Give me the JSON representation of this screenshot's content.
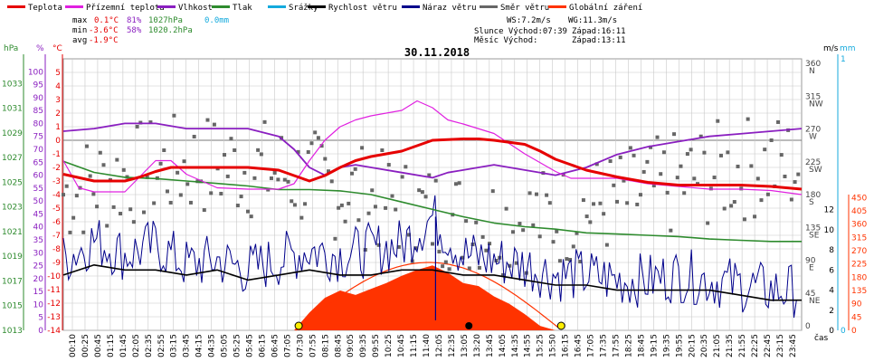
{
  "colors": {
    "teplota": "#e60000",
    "rosny_bod": "#e020e0",
    "vlhkost": "#8a1fc0",
    "tlak": "#2e8b2e",
    "srazky": "#14aadd",
    "rychlost": "#000000",
    "naraz": "#00008b",
    "smer": "#666666",
    "zareni": "#ff3300",
    "theoretical_curve": "#ff3300",
    "grid": "#c8c8c8"
  },
  "legend": [
    {
      "key": "teplota",
      "label": "Teplota"
    },
    {
      "key": "rosny_bod",
      "label": "Přízemní teplota"
    },
    {
      "key": "vlhkost",
      "label": "Vlhkost"
    },
    {
      "key": "tlak",
      "label": "Tlak"
    },
    {
      "key": "srazky",
      "label": "Srážky"
    },
    {
      "key": "rychlost",
      "label": "Rychlost větru"
    },
    {
      "key": "naraz",
      "label": "Náraz větru"
    },
    {
      "key": "smer",
      "label": "Směr větru"
    },
    {
      "key": "zareni",
      "label": "Globální záření"
    }
  ],
  "stats": {
    "max_label": "max",
    "max_temp": "0.1°C",
    "max_hum": "81%",
    "max_press": "1027hPa",
    "srazky": "0.0mm",
    "min_label": "min",
    "min_temp": "-3.6°C",
    "min_hum": "58%",
    "min_press": "1020.2hPa",
    "avg_label": "avg",
    "avg_temp": "-1.9°C",
    "ws": "WS:7.2m/s",
    "wg": "WG:11.3m/s",
    "slunce": "Slunce Východ:07:39",
    "slunce_zapad": "Západ:16:11",
    "mesic": "Měsíc  Východ:",
    "mesic_zapad": "Západ:13:11"
  },
  "chart_data": {
    "type": "line",
    "title": "30.11.2018",
    "x_unit_label": "čas",
    "x_ticks": [
      "00:10",
      "00:25",
      "00:45",
      "01:15",
      "01:45",
      "02:05",
      "02:35",
      "02:55",
      "03:15",
      "03:45",
      "04:15",
      "04:35",
      "05:05",
      "05:25",
      "05:45",
      "06:15",
      "06:45",
      "07:05",
      "07:30",
      "07:55",
      "08:15",
      "08:45",
      "09:05",
      "09:35",
      "09:55",
      "10:25",
      "10:45",
      "11:15",
      "11:40",
      "12:05",
      "12:35",
      "13:05",
      "13:20",
      "13:45",
      "14:05",
      "14:35",
      "14:55",
      "15:25",
      "15:50",
      "16:15",
      "16:45",
      "17:05",
      "17:35",
      "17:55",
      "18:25",
      "18:45",
      "19:15",
      "19:35",
      "19:55",
      "20:15",
      "20:35",
      "21:05",
      "21:35",
      "21:55",
      "22:25",
      "22:45",
      "23:15",
      "23:45"
    ],
    "axes": {
      "hpa": {
        "label": "hPa",
        "range": [
          1013,
          1035
        ],
        "ticks": [
          1013,
          1015,
          1017,
          1019,
          1021,
          1023,
          1025,
          1027,
          1029,
          1031,
          1033
        ]
      },
      "pct": {
        "label": "%",
        "range": [
          0,
          105
        ],
        "ticks": [
          0,
          5,
          10,
          15,
          20,
          25,
          30,
          35,
          40,
          45,
          50,
          55,
          60,
          65,
          70,
          75,
          80,
          85,
          90,
          95,
          100
        ]
      },
      "temp": {
        "label": "°C",
        "range": [
          -14,
          6
        ],
        "ticks": [
          -14,
          -13,
          -12,
          -11,
          -10,
          -9,
          -8,
          -7,
          -6,
          -5,
          -4,
          -3,
          -2,
          -1,
          0,
          1,
          2,
          3,
          4,
          5
        ]
      },
      "dir": {
        "ticks": [
          "360 N",
          "315 NW",
          "270 W",
          "225 SW",
          "180 S",
          "135 SE",
          "90 E",
          "45 NE",
          "0"
        ]
      },
      "ms": {
        "label": "m/s",
        "ticks": [
          0,
          2,
          4,
          6,
          8,
          10,
          12
        ]
      },
      "mm": {
        "label": "mm",
        "ticks": [
          1,
          0
        ]
      },
      "wm2": {
        "ticks": [
          0,
          45,
          90,
          135,
          180,
          225,
          270,
          315,
          360,
          405,
          450
        ]
      }
    },
    "series": [
      {
        "name": "Teplota",
        "unit": "°C",
        "x": [
          0,
          1,
          2,
          2.5,
          3,
          3.5,
          4,
          5,
          6,
          7,
          7.5,
          8,
          8.5,
          9,
          9.5,
          10,
          11,
          11.5,
          12,
          13,
          13.5,
          14,
          15,
          15.5,
          16,
          16.5,
          17,
          18,
          19,
          20,
          21,
          22,
          23,
          24
        ],
        "y": [
          -2.5,
          -3.0,
          -3.0,
          -2.7,
          -2.3,
          -2.0,
          -2.0,
          -2.0,
          -2.0,
          -2.2,
          -2.6,
          -3.0,
          -2.6,
          -2.0,
          -1.5,
          -1.2,
          -0.8,
          -0.4,
          0.0,
          0.1,
          0.1,
          0.0,
          -0.3,
          -0.8,
          -1.4,
          -1.8,
          -2.2,
          -2.7,
          -3.1,
          -3.3,
          -3.3,
          -3.3,
          -3.4,
          -3.6
        ]
      },
      {
        "name": "Přízemní teplota",
        "unit": "°C",
        "x": [
          0,
          0.5,
          1,
          2,
          3,
          3.5,
          4,
          5,
          6,
          7,
          7.5,
          8,
          8.5,
          9,
          9.5,
          10,
          11,
          11.5,
          12,
          12.5,
          13,
          14,
          15,
          16,
          16.5,
          17,
          18,
          19,
          20,
          21,
          22,
          23,
          24
        ],
        "y": [
          -1.5,
          -3.5,
          -3.8,
          -3.8,
          -1.5,
          -1.5,
          -2.5,
          -3.5,
          -3.6,
          -3.6,
          -3.2,
          -1.5,
          0.0,
          1.0,
          1.5,
          1.8,
          2.2,
          2.9,
          2.4,
          1.5,
          1.2,
          0.5,
          -1.0,
          -2.3,
          -2.8,
          -2.8,
          -2.8,
          -3.2,
          -3.4,
          -3.6,
          -3.6,
          -3.7,
          -4.0
        ]
      },
      {
        "name": "Vlhkost",
        "unit": "%",
        "x": [
          0,
          1,
          2,
          3,
          4,
          5,
          6,
          7,
          7.5,
          8,
          8.5,
          9,
          9.5,
          10,
          11,
          12,
          12.5,
          13,
          14,
          15,
          16,
          17,
          18,
          19,
          20,
          21,
          22,
          23,
          24
        ],
        "y": [
          77,
          78,
          80,
          80,
          78,
          78,
          78,
          75,
          70,
          63,
          60,
          63,
          64,
          63,
          61,
          59,
          61,
          62,
          64,
          62,
          60,
          63,
          68,
          71,
          73,
          75,
          76,
          77,
          78
        ]
      },
      {
        "name": "Tlak",
        "unit": "hPa",
        "x": [
          0,
          1,
          2,
          3,
          4,
          5,
          6,
          7,
          8,
          9,
          10,
          11,
          12,
          13,
          14,
          15,
          16,
          17,
          18,
          19,
          20,
          21,
          22,
          23,
          24
        ],
        "y": [
          1026.7,
          1025.8,
          1025.4,
          1025.3,
          1025.1,
          1024.9,
          1024.7,
          1024.4,
          1024.4,
          1024.3,
          1024.0,
          1023.4,
          1022.8,
          1022.2,
          1021.7,
          1021.4,
          1021.2,
          1020.9,
          1020.8,
          1020.7,
          1020.6,
          1020.4,
          1020.3,
          1020.2,
          1020.2
        ]
      },
      {
        "name": "Rychlost větru",
        "unit": "m/s",
        "x": [
          0,
          1,
          2,
          3,
          4,
          5,
          6,
          7,
          8,
          9,
          10,
          11,
          12,
          13,
          14,
          15,
          16,
          17,
          18,
          19,
          20,
          21,
          22,
          23,
          24
        ],
        "y": [
          5.5,
          6.5,
          6.0,
          6.0,
          5.5,
          6.0,
          5.0,
          5.5,
          6.0,
          5.5,
          5.5,
          6.0,
          6.0,
          5.5,
          5.5,
          5.0,
          4.5,
          4.5,
          4.0,
          4.0,
          4.0,
          4.0,
          3.5,
          3.0,
          3.0
        ]
      },
      {
        "name": "Náraz větru",
        "unit": "m/s",
        "x": [
          0,
          1,
          2,
          3,
          4,
          5,
          6,
          7,
          8,
          9,
          10,
          11,
          12,
          13,
          14,
          15,
          16,
          17,
          18,
          19,
          20,
          21,
          22,
          23,
          24
        ],
        "y": [
          7.0,
          9.0,
          7.5,
          8.5,
          6.5,
          7.0,
          6.0,
          7.0,
          8.0,
          7.5,
          8.0,
          8.5,
          11.3,
          7.5,
          7.0,
          6.5,
          5.5,
          5.5,
          5.0,
          5.0,
          5.5,
          5.0,
          4.5,
          4.0,
          4.0
        ]
      },
      {
        "name": "Globální záření",
        "unit": "W/m2",
        "x": [
          7.5,
          8,
          8.5,
          9,
          9.5,
          10,
          10.5,
          11,
          11.5,
          12,
          12.5,
          13,
          13.5,
          14,
          14.5,
          15,
          15.5,
          16
        ],
        "y": [
          0,
          60,
          110,
          135,
          120,
          140,
          160,
          185,
          205,
          220,
          195,
          160,
          150,
          115,
          90,
          55,
          15,
          0
        ]
      }
    ],
    "sun_markers": [
      "07:39",
      "16:11"
    ],
    "moon_marker": "13:11"
  }
}
